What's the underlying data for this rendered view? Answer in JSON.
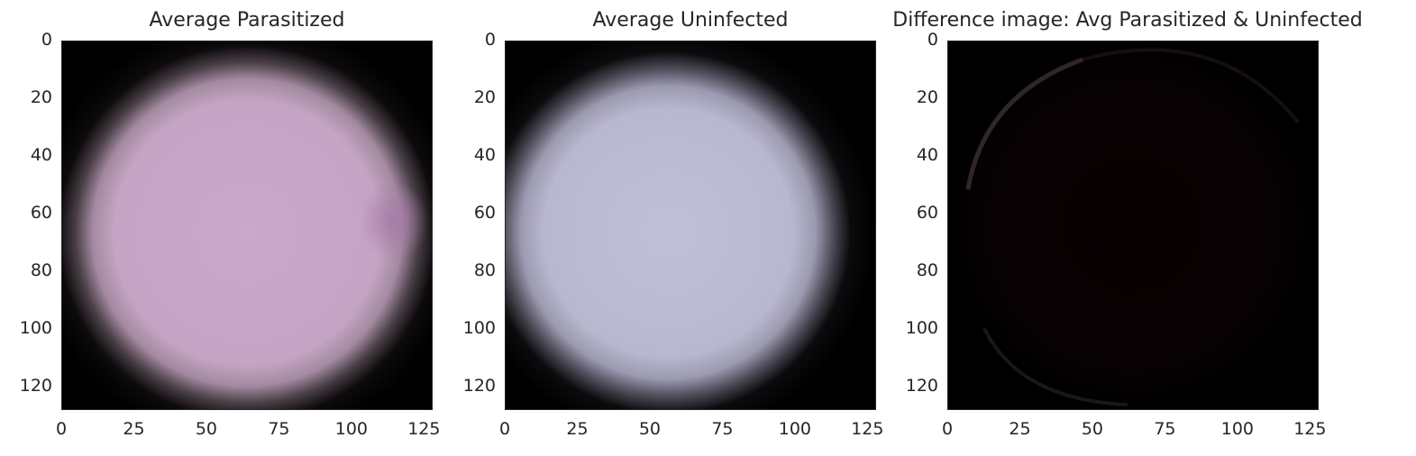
{
  "chart_data": [
    {
      "type": "heatmap",
      "title": "Average Parasitized",
      "xlim": [
        0,
        128
      ],
      "ylim": [
        128,
        0
      ],
      "xticks": [
        "0",
        "25",
        "50",
        "75",
        "100",
        "125"
      ],
      "yticks": [
        "0",
        "20",
        "40",
        "60",
        "80",
        "100",
        "120"
      ],
      "image": {
        "center_color": "#c6a6c6",
        "edge_color": "#000000",
        "spot_color": "#a879a8"
      }
    },
    {
      "type": "heatmap",
      "title": "Average Uninfected",
      "xlim": [
        0,
        128
      ],
      "ylim": [
        128,
        0
      ],
      "xticks": [
        "0",
        "25",
        "50",
        "75",
        "100",
        "125"
      ],
      "yticks": [
        "0",
        "20",
        "40",
        "60",
        "80",
        "100",
        "120"
      ],
      "image": {
        "center_color": "#bdbcd2",
        "edge_color": "#000000"
      }
    },
    {
      "type": "heatmap",
      "title": "Difference image: Avg Parasitized & Uninfected",
      "xlim": [
        0,
        128
      ],
      "ylim": [
        128,
        0
      ],
      "xticks": [
        "0",
        "25",
        "50",
        "75",
        "100",
        "125"
      ],
      "yticks": [
        "0",
        "20",
        "40",
        "60",
        "80",
        "100",
        "120"
      ],
      "image": {
        "center_color": "#070000",
        "edge_color": "#000000",
        "ring_color": "#3d3238"
      }
    }
  ]
}
